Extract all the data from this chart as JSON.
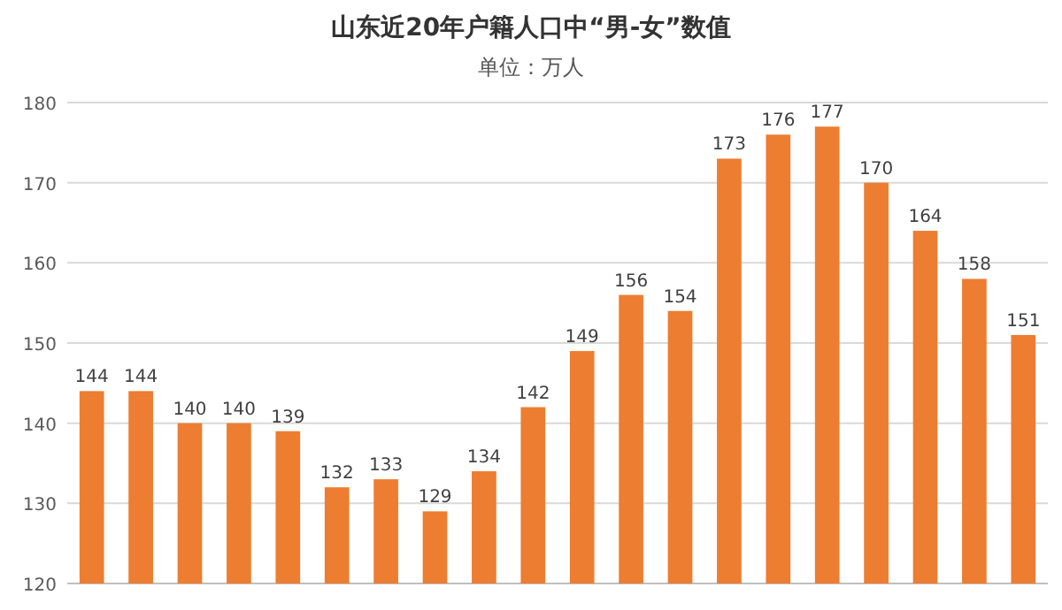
{
  "chart_data": {
    "type": "bar",
    "title": "山东近20年户籍人口中“男-女”数值",
    "subtitle": "单位：万人",
    "categories": [
      null,
      null,
      null,
      null,
      null,
      null,
      null,
      null,
      null,
      null,
      null,
      null,
      null,
      null,
      null,
      null,
      null,
      null,
      null,
      null
    ],
    "values": [
      144,
      144,
      140,
      140,
      139,
      132,
      133,
      129,
      134,
      142,
      149,
      156,
      154,
      173,
      176,
      177,
      170,
      164,
      158,
      151
    ],
    "color": "#ed7d31",
    "ylim": [
      120,
      180
    ],
    "yticks": [
      120,
      130,
      140,
      150,
      160,
      170,
      180
    ],
    "grid": "y",
    "data_labels": true
  }
}
